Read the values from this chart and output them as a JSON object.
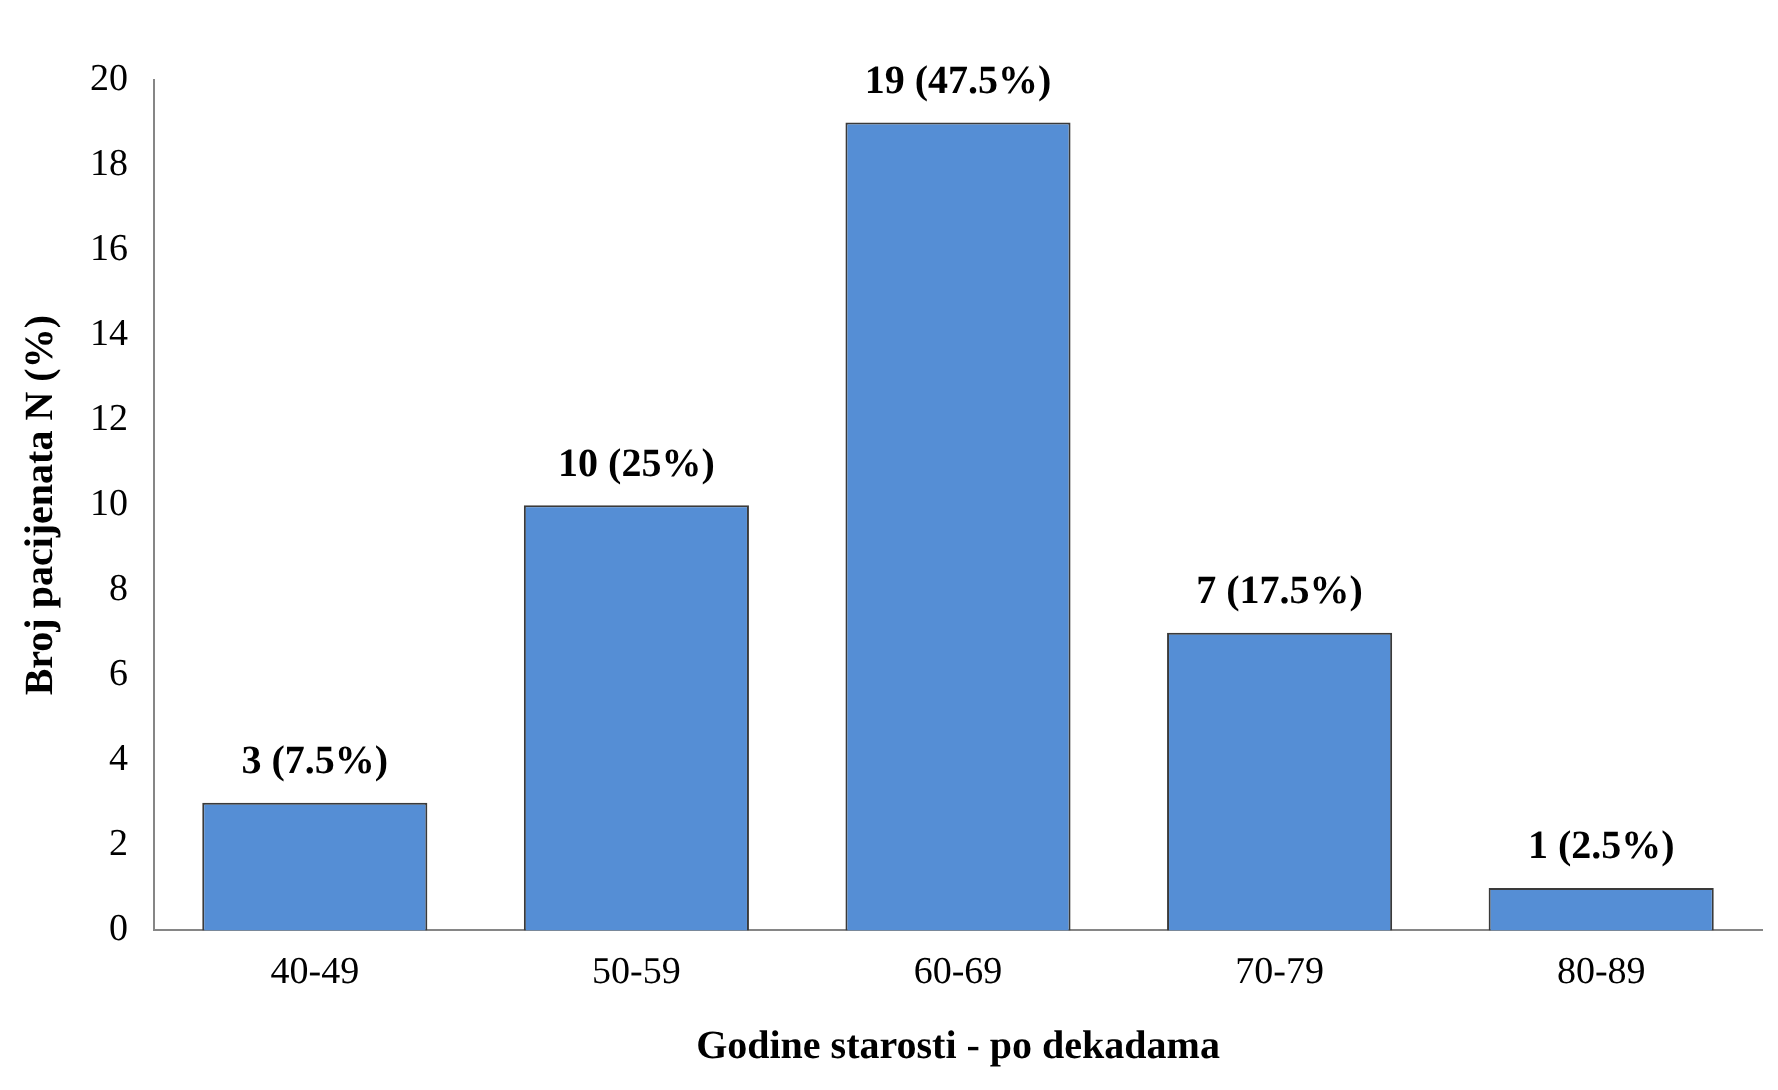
{
  "chart_data": {
    "type": "bar",
    "xlabel": "Godine starosti - po dekadama",
    "ylabel": "Broj pacijenata N (%)",
    "categories": [
      "40-49",
      "50-59",
      "60-69",
      "70-79",
      "80-89"
    ],
    "values": [
      3,
      10,
      19,
      7,
      1
    ],
    "value_labels": [
      "3 (7.5%)",
      "10 (25%)",
      "19 (47.5%)",
      "7 (17.5%)",
      "1 (2.5%)"
    ],
    "color": "#558ed5",
    "ylim": [
      0,
      20
    ],
    "yticks": [
      0,
      2,
      4,
      6,
      8,
      10,
      12,
      14,
      16,
      18,
      20
    ],
    "grid": false,
    "legend": false
  }
}
